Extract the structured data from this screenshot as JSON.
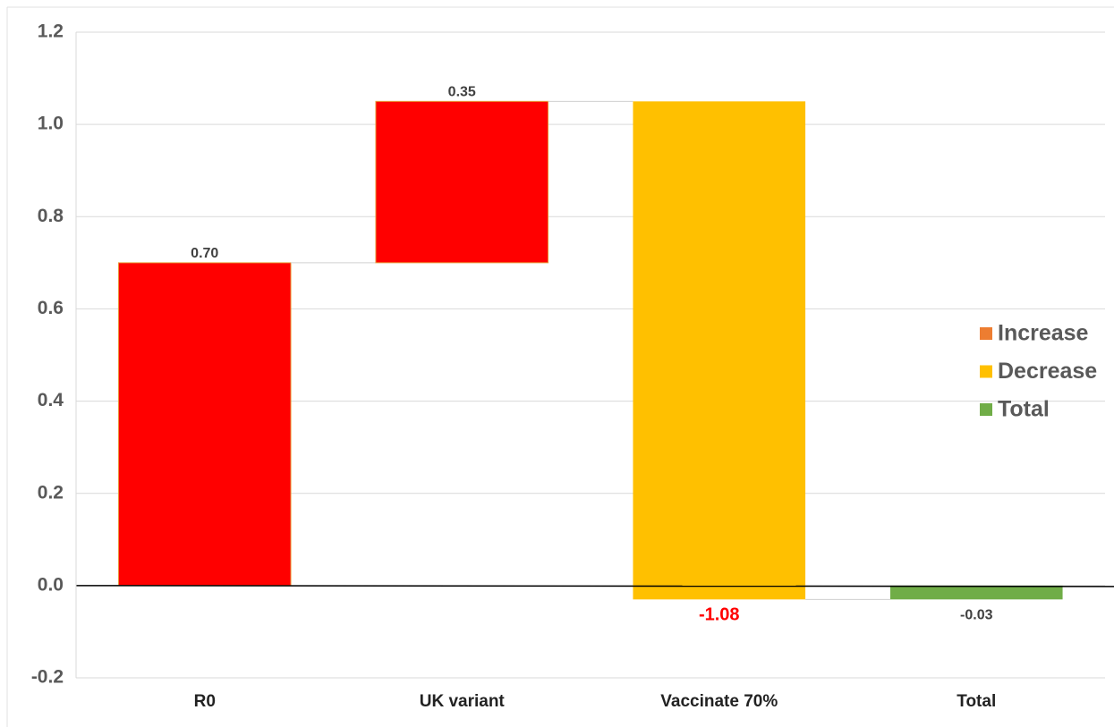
{
  "chart_data": {
    "type": "waterfall",
    "categories": [
      "R0",
      "UK variant",
      "Vaccinate 70%",
      "Total"
    ],
    "values": [
      0.7,
      0.35,
      -1.08,
      -0.03
    ],
    "value_labels": [
      "0.70",
      "0.35",
      "-1.08",
      "-0.03"
    ],
    "value_label_colors": [
      "#404040",
      "#404040",
      "#ff0000",
      "#404040"
    ],
    "kinds": [
      "increase",
      "increase",
      "decrease",
      "total"
    ],
    "bar_colors": [
      "#ff0000",
      "#ff0000",
      "#ffc000",
      "#70ad47"
    ],
    "legend": [
      {
        "name": "Increase",
        "color": "#ed7d31"
      },
      {
        "name": "Decrease",
        "color": "#ffc000"
      },
      {
        "name": "Total",
        "color": "#70ad47"
      }
    ],
    "legend_position": "right",
    "ylim": [
      -0.2,
      1.2
    ],
    "yticks": [
      -0.2,
      {
        "value": 0,
        "label": "0.0"
      },
      0.2,
      0.4,
      0.6,
      0.8,
      {
        "value": 1,
        "label": "1.0"
      },
      1.2
    ],
    "grid": true
  }
}
